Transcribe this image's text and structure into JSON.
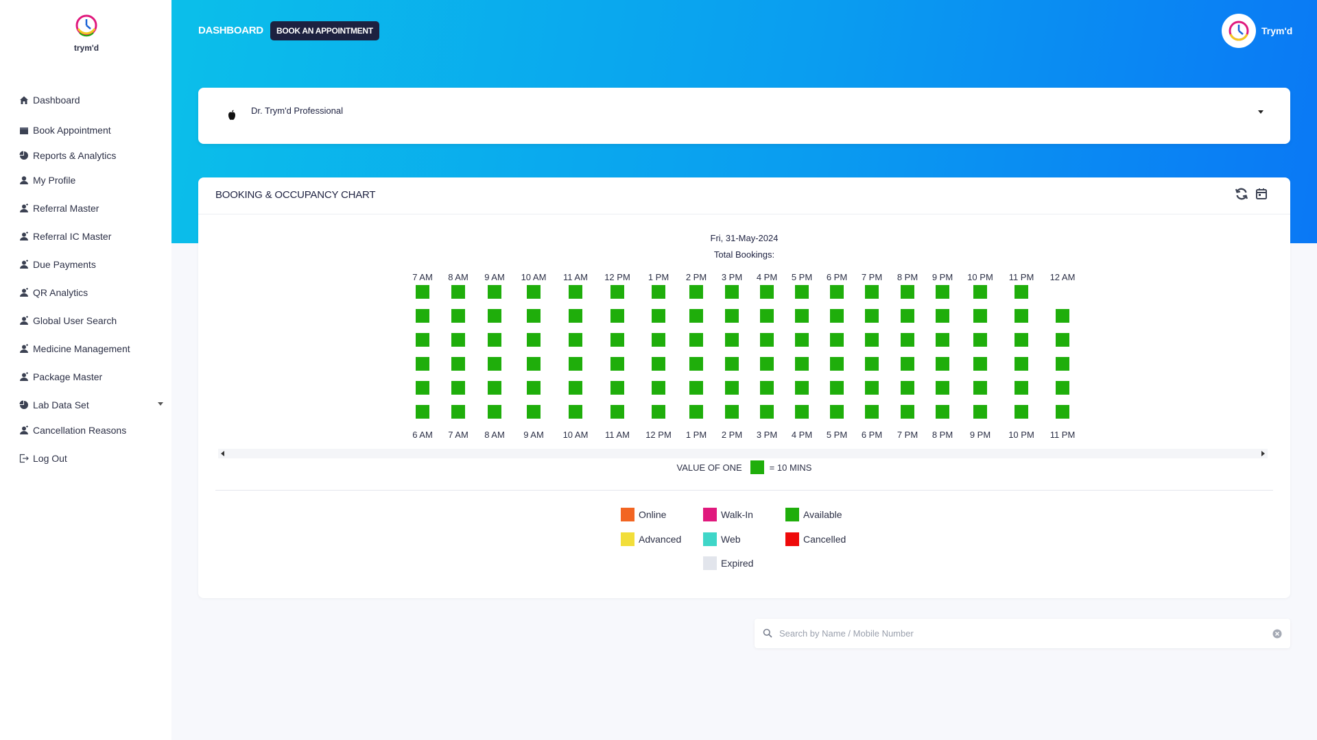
{
  "app": {
    "name": "trym'd"
  },
  "sidebar": {
    "items": [
      {
        "label": "Dashboard",
        "icon": "home-icon"
      },
      {
        "label": "Book Appointment",
        "icon": "calendar-icon"
      },
      {
        "label": "Reports & Analytics",
        "icon": "pie-chart-icon"
      },
      {
        "label": "My Profile",
        "icon": "user-icon"
      },
      {
        "label": "Referral Master",
        "icon": "doctor-icon"
      },
      {
        "label": "Referral IC Master",
        "icon": "doctor-icon"
      },
      {
        "label": "Due Payments",
        "icon": "doctor-icon"
      },
      {
        "label": "QR Analytics",
        "icon": "doctor-icon"
      },
      {
        "label": "Global User Search",
        "icon": "doctor-icon"
      },
      {
        "label": "Medicine Management",
        "icon": "doctor-icon"
      },
      {
        "label": "Package Master",
        "icon": "doctor-icon"
      },
      {
        "label": "Lab Data Set",
        "icon": "pie-chart-icon"
      },
      {
        "label": "Cancellation Reasons",
        "icon": "doctor-icon"
      },
      {
        "label": "Log Out",
        "icon": "logout-icon"
      }
    ]
  },
  "header": {
    "breadcrumb": "DASHBOARD",
    "book_button": "BOOK AN APPOINTMENT",
    "user_name": "Trym'd"
  },
  "doctor_select": {
    "value": "Dr. Trym'd Professional"
  },
  "chart_card": {
    "title": "BOOKING & OCCUPANCY CHART",
    "date": "Fri, 31-May-2024",
    "total_bookings": "Total Bookings:",
    "value_of_one": "VALUE OF ONE",
    "equals": "= 10 MINS"
  },
  "chart_data": {
    "type": "heatmap",
    "top_labels": [
      "7 AM",
      "8 AM",
      "9 AM",
      "10 AM",
      "11 AM",
      "12 PM",
      "1 PM",
      "2 PM",
      "3 PM",
      "4 PM",
      "5 PM",
      "6 PM",
      "7 PM",
      "8 PM",
      "9 PM",
      "10 PM",
      "11 PM",
      "12 AM"
    ],
    "bottom_labels": [
      "6 AM",
      "7 AM",
      "8 AM",
      "9 AM",
      "10 AM",
      "11 AM",
      "12 PM",
      "1 PM",
      "2 PM",
      "3 PM",
      "4 PM",
      "5 PM",
      "6 PM",
      "7 PM",
      "8 PM",
      "9 PM",
      "10 PM",
      "11 PM"
    ],
    "slots_per_hour": [
      6,
      6,
      6,
      6,
      6,
      6,
      6,
      6,
      6,
      6,
      6,
      6,
      6,
      6,
      6,
      6,
      6,
      5
    ],
    "slot_status": "Available",
    "slot_minutes": 10,
    "available_color": "#1fae0b"
  },
  "legend": [
    {
      "label": "Online",
      "color": "#f26522"
    },
    {
      "label": "Walk-In",
      "color": "#e0197d"
    },
    {
      "label": "Available",
      "color": "#1fae0b"
    },
    {
      "label": "Advanced",
      "color": "#f2de3a"
    },
    {
      "label": "Web",
      "color": "#3fd6c8"
    },
    {
      "label": "Cancelled",
      "color": "#ee0a0a"
    },
    {
      "label": "Expired",
      "color": "#e2e5ec"
    }
  ],
  "search": {
    "placeholder": "Search by Name / Mobile Number",
    "value": ""
  }
}
